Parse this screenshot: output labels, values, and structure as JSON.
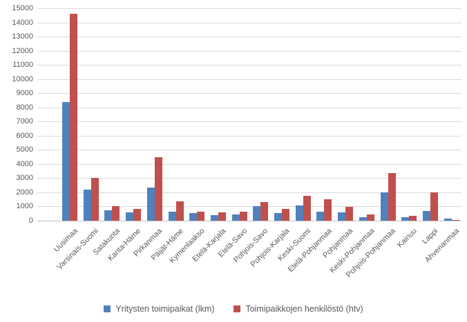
{
  "chart_data": {
    "type": "bar",
    "title": "",
    "xlabel": "",
    "ylabel": "",
    "grid": true,
    "legend_position": "bottom",
    "ylim": [
      0,
      15000
    ],
    "y_tick_step": 1000,
    "y_ticks": [
      0,
      1000,
      2000,
      3000,
      4000,
      5000,
      6000,
      7000,
      8000,
      9000,
      10000,
      11000,
      12000,
      13000,
      14000,
      15000
    ],
    "categories": [
      "Uusimaa",
      "Varsinais-Suomi",
      "Satakunta",
      "Kanta-Häme",
      "Pirkanmaa",
      "Päijät-Häme",
      "Kymenlaakso",
      "Etelä-Karjala",
      "Etelä-Savo",
      "Pohjois-Savo",
      "Pohjois-Karjala",
      "Keski-Suomi",
      "Etelä-Pohjanmaa",
      "Pohjanmaa",
      "Keski-Pohjanmaa",
      "Pohjois-Pohjanmaa",
      "Kainuu",
      "Lappi",
      "Ahvenanmaa"
    ],
    "series": [
      {
        "name": "Yritysten toimipaikat (lkm)",
        "color": "#4F81BD",
        "values": [
          8400,
          2200,
          750,
          600,
          2350,
          650,
          550,
          400,
          450,
          1000,
          550,
          1050,
          650,
          600,
          250,
          2000,
          250,
          700,
          150
        ]
      },
      {
        "name": "Toimipaikkojen henkilöstö (htv)",
        "color": "#C0504D",
        "values": [
          14600,
          3000,
          1000,
          850,
          4500,
          1350,
          650,
          600,
          650,
          1300,
          850,
          1750,
          1500,
          950,
          450,
          3350,
          350,
          2000,
          30
        ]
      }
    ],
    "colors": {
      "grid": "#d9d9d9",
      "axis": "#bfbfbf",
      "text": "#595959",
      "background": "#ffffff"
    }
  }
}
